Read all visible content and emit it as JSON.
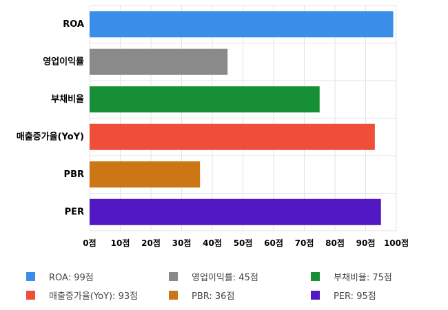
{
  "chart_data": {
    "type": "bar",
    "orientation": "horizontal",
    "categories": [
      "ROA",
      "영업이익률",
      "부채비율",
      "매출증가율(YoY)",
      "PBR",
      "PER"
    ],
    "values": [
      99,
      45,
      75,
      93,
      36,
      95
    ],
    "colors": [
      "#3a8de8",
      "#8a8a8a",
      "#178f37",
      "#ef4e3a",
      "#cc7616",
      "#5118c4"
    ],
    "xlim": [
      0,
      100
    ],
    "x_ticks": [
      0,
      10,
      20,
      30,
      40,
      50,
      60,
      70,
      80,
      90,
      100
    ],
    "x_tick_labels": [
      "0점",
      "10점",
      "20점",
      "30점",
      "40점",
      "50점",
      "60점",
      "70점",
      "80점",
      "90점",
      "100점"
    ],
    "grid": true,
    "legend_position": "bottom",
    "legend": [
      {
        "label": "ROA: 99점",
        "color": "#3a8de8"
      },
      {
        "label": "영업이익률: 45점",
        "color": "#8a8a8a"
      },
      {
        "label": "부채비율: 75점",
        "color": "#178f37"
      },
      {
        "label": "매출증가율(YoY): 93점",
        "color": "#ef4e3a"
      },
      {
        "label": "PBR: 36점",
        "color": "#cc7616"
      },
      {
        "label": "PER: 95점",
        "color": "#5118c4"
      }
    ]
  }
}
